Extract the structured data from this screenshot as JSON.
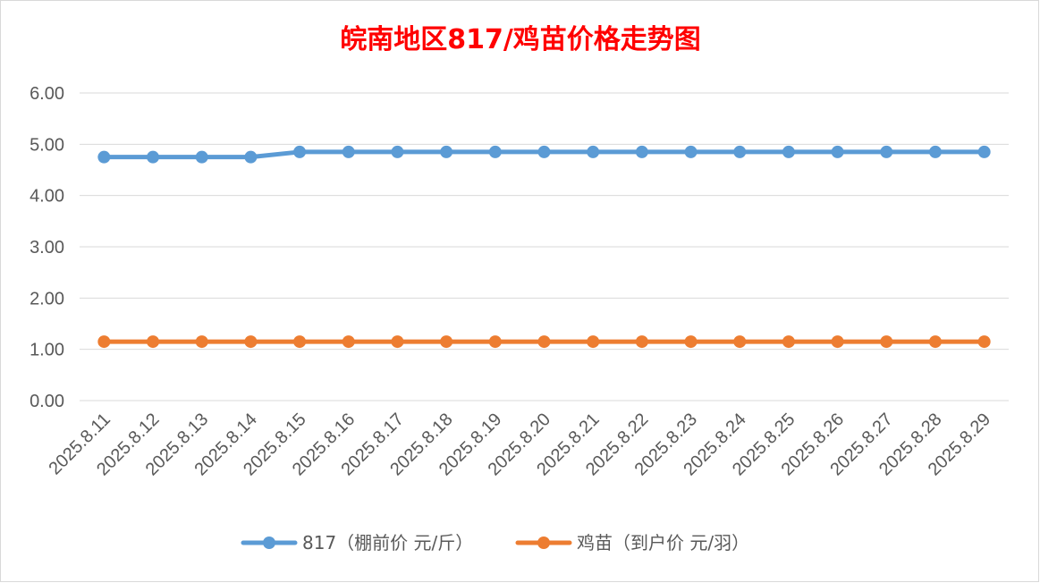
{
  "chart_data": {
    "type": "line",
    "title": "皖南地区817/鸡苗价格走势图",
    "categories": [
      "2025.8.11",
      "2025.8.12",
      "2025.8.13",
      "2025.8.14",
      "2025.8.15",
      "2025.8.16",
      "2025.8.17",
      "2025.8.18",
      "2025.8.19",
      "2025.8.20",
      "2025.8.21",
      "2025.8.22",
      "2025.8.23",
      "2025.8.24",
      "2025.8.25",
      "2025.8.26",
      "2025.8.27",
      "2025.8.28",
      "2025.8.29"
    ],
    "series": [
      {
        "name": "817（棚前价 元/斤）",
        "color": "#5b9bd5",
        "values": [
          4.75,
          4.75,
          4.75,
          4.75,
          4.85,
          4.85,
          4.85,
          4.85,
          4.85,
          4.85,
          4.85,
          4.85,
          4.85,
          4.85,
          4.85,
          4.85,
          4.85,
          4.85,
          4.85
        ]
      },
      {
        "name": "鸡苗（到户价 元/羽）",
        "color": "#ed7d31",
        "values": [
          1.15,
          1.15,
          1.15,
          1.15,
          1.15,
          1.15,
          1.15,
          1.15,
          1.15,
          1.15,
          1.15,
          1.15,
          1.15,
          1.15,
          1.15,
          1.15,
          1.15,
          1.15,
          1.15
        ]
      }
    ],
    "xlabel": "",
    "ylabel": "",
    "ylim": [
      0,
      6
    ],
    "yticks": [
      "0.00",
      "1.00",
      "2.00",
      "3.00",
      "4.00",
      "5.00",
      "6.00"
    ],
    "grid": true,
    "legend": "bottom"
  }
}
